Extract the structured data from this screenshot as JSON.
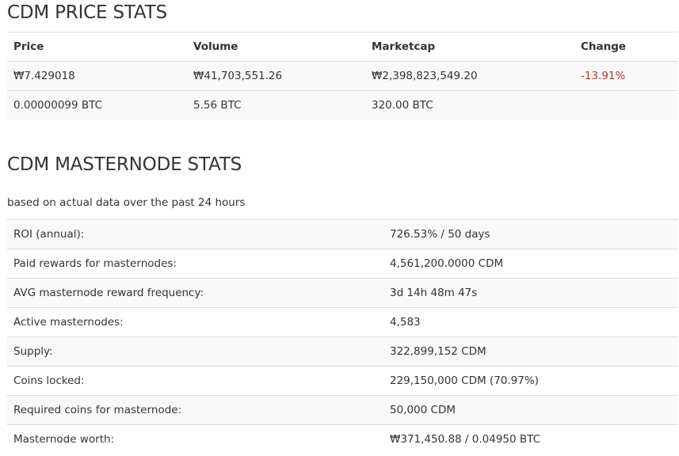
{
  "price_section": {
    "title": "CDM PRICE STATS",
    "headers": {
      "price": "Price",
      "volume": "Volume",
      "marketcap": "Marketcap",
      "change": "Change"
    },
    "rows": [
      {
        "price": "₩7.429018",
        "volume": "₩41,703,551.26",
        "marketcap": "₩2,398,823,549.20",
        "change": "-13.91%"
      },
      {
        "price": "0.00000099 BTC",
        "volume": "5.56 BTC",
        "marketcap": "320.00 BTC",
        "change": ""
      }
    ],
    "colors": {
      "negative": "#c9302c",
      "stripe": "#f9f9f9"
    }
  },
  "masternode_section": {
    "title": "CDM MASTERNODE STATS",
    "subtitle": "based on actual data over the past 24 hours",
    "rows": [
      {
        "label": "ROI (annual):",
        "value": "726.53% / 50 days"
      },
      {
        "label": "Paid rewards for masternodes:",
        "value": "4,561,200.0000 CDM"
      },
      {
        "label": "AVG masternode reward frequency:",
        "value": "3d 14h 48m 47s"
      },
      {
        "label": "Active masternodes:",
        "value": "4,583"
      },
      {
        "label": "Supply:",
        "value": "322,899,152 CDM"
      },
      {
        "label": "Coins locked:",
        "value": "229,150,000 CDM (70.97%)"
      },
      {
        "label": "Required coins for masternode:",
        "value": "50,000 CDM"
      },
      {
        "label": "Masternode worth:",
        "value": "₩371,450.88 / 0.04950 BTC"
      }
    ]
  }
}
